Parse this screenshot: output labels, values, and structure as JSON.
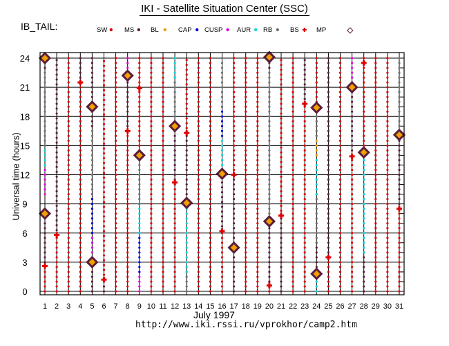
{
  "page_title": "IKI - Satellite Situation Center (SSC)",
  "region_label": "IB_TAIL:",
  "legend": [
    {
      "label": "SW",
      "color": "#e00000",
      "symbol": "dot"
    },
    {
      "label": "MS",
      "color": "#5a1e3c",
      "symbol": "dot"
    },
    {
      "label": "BL",
      "color": "#f0a000",
      "symbol": "dot"
    },
    {
      "label": "CAP",
      "color": "#0000e0",
      "symbol": "dot"
    },
    {
      "label": "CUSP",
      "color": "#e000e0",
      "symbol": "dot"
    },
    {
      "label": "AUR",
      "color": "#00d8d8",
      "symbol": "dot"
    },
    {
      "label": "RB",
      "color": "#707070",
      "symbol": "dot"
    },
    {
      "label": "BS",
      "color": "#e00000",
      "symbol": "plus"
    },
    {
      "label": "MP",
      "color": "#5a1e3c",
      "symbol": "diamond"
    }
  ],
  "footer": {
    "month": "July    1997",
    "url": "http://www.iki.rssi.ru/vprokhor/camp2.htm"
  },
  "chart_data": {
    "type": "scatter",
    "title": "IKI - Satellite Situation Center (SSC)",
    "xlabel": "July    1997",
    "ylabel": "Universal time (hours)",
    "x_ticks": [
      "1",
      "2",
      "3",
      "4",
      "5",
      "6",
      "7",
      "8",
      "9",
      "10",
      "11",
      "12",
      "13",
      "14",
      "15",
      "16",
      "17",
      "18",
      "19",
      "20",
      "21",
      "22",
      "23",
      "24",
      "25",
      "26",
      "27",
      "28",
      "29",
      "30",
      "31"
    ],
    "y_ticks": [
      "0",
      "3",
      "6",
      "9",
      "12",
      "15",
      "18",
      "21",
      "24"
    ],
    "ylim": [
      0,
      24
    ],
    "grid": true,
    "days": [
      {
        "day": 1,
        "segments": [
          [
            "SW",
            0,
            3
          ],
          [
            "MS",
            3,
            8
          ],
          [
            "BL",
            8,
            8.5
          ],
          [
            "CUSP",
            10,
            13
          ],
          [
            "AUR",
            13,
            15
          ],
          [
            "RB",
            15,
            23
          ],
          [
            "MS",
            23,
            24
          ]
        ],
        "bs": [
          2.6
        ],
        "mp": [
          8,
          24
        ]
      },
      {
        "day": 2,
        "segments": [
          [
            "SW",
            0,
            5.8
          ],
          [
            "MS",
            5.8,
            24
          ]
        ],
        "bs": [
          5.8
        ],
        "mp": []
      },
      {
        "day": 3,
        "segments": [
          [
            "SW",
            0,
            24
          ]
        ],
        "bs": [],
        "mp": []
      },
      {
        "day": 4,
        "segments": [
          [
            "SW",
            0,
            21.5
          ],
          [
            "MS",
            21.5,
            24
          ]
        ],
        "bs": [
          21.5
        ],
        "mp": []
      },
      {
        "day": 5,
        "segments": [
          [
            "MS",
            0,
            3
          ],
          [
            "CUSP",
            3,
            6
          ],
          [
            "CAP",
            6,
            10
          ],
          [
            "RB",
            10,
            17
          ],
          [
            "MS",
            17,
            24
          ]
        ],
        "bs": [],
        "mp": [
          3,
          19
        ]
      },
      {
        "day": 6,
        "segments": [
          [
            "MS",
            0,
            1.2
          ],
          [
            "SW",
            1.2,
            24
          ]
        ],
        "bs": [
          1.2
        ],
        "mp": []
      },
      {
        "day": 7,
        "segments": [
          [
            "SW",
            0,
            24
          ]
        ],
        "bs": [],
        "mp": []
      },
      {
        "day": 8,
        "segments": [
          [
            "SW",
            0,
            16.5
          ],
          [
            "MS",
            16.5,
            22
          ],
          [
            "CUSP",
            22,
            24
          ]
        ],
        "bs": [
          16.5
        ],
        "mp": [
          22.2
        ]
      },
      {
        "day": 9,
        "segments": [
          [
            "CUSP",
            0,
            2
          ],
          [
            "CAP",
            2,
            6
          ],
          [
            "AUR",
            6,
            9
          ],
          [
            "RB",
            9,
            14
          ],
          [
            "SW",
            14,
            24
          ]
        ],
        "bs": [
          20.9
        ],
        "mp": [
          14
        ]
      },
      {
        "day": 10,
        "segments": [
          [
            "SW",
            0,
            24
          ]
        ],
        "bs": [],
        "mp": []
      },
      {
        "day": 11,
        "segments": [
          [
            "SW",
            0,
            24
          ]
        ],
        "bs": [],
        "mp": []
      },
      {
        "day": 12,
        "segments": [
          [
            "SW",
            0,
            11
          ],
          [
            "MS",
            11,
            17
          ],
          [
            "RB",
            17,
            22
          ],
          [
            "AUR",
            22,
            24
          ]
        ],
        "bs": [
          11.2
        ],
        "mp": [
          17
        ]
      },
      {
        "day": 13,
        "segments": [
          [
            "RB",
            0,
            2
          ],
          [
            "AUR",
            2,
            9
          ],
          [
            "MS",
            9,
            16.3
          ],
          [
            "SW",
            16.3,
            24
          ]
        ],
        "bs": [
          16.3
        ],
        "mp": [
          9.1
        ]
      },
      {
        "day": 14,
        "segments": [
          [
            "SW",
            0,
            24
          ]
        ],
        "bs": [],
        "mp": []
      },
      {
        "day": 15,
        "segments": [
          [
            "SW",
            0,
            24
          ]
        ],
        "bs": [],
        "mp": []
      },
      {
        "day": 16,
        "segments": [
          [
            "SW",
            0,
            6.2
          ],
          [
            "MS",
            6.2,
            12
          ],
          [
            "AUR",
            12,
            16
          ],
          [
            "CAP",
            16,
            19
          ],
          [
            "RB",
            19,
            24
          ]
        ],
        "bs": [
          6.2
        ],
        "mp": [
          12.1
        ]
      },
      {
        "day": 17,
        "segments": [
          [
            "MS",
            0,
            4
          ],
          [
            "BL",
            4,
            5
          ],
          [
            "MS",
            5,
            12
          ],
          [
            "SW",
            12,
            24
          ]
        ],
        "bs": [
          12
        ],
        "mp": [
          4.5
        ]
      },
      {
        "day": 18,
        "segments": [
          [
            "SW",
            0,
            24
          ]
        ],
        "bs": [],
        "mp": []
      },
      {
        "day": 19,
        "segments": [
          [
            "SW",
            0,
            24
          ]
        ],
        "bs": [],
        "mp": []
      },
      {
        "day": 20,
        "segments": [
          [
            "SW",
            0,
            1
          ],
          [
            "MS",
            1,
            7
          ],
          [
            "BL",
            7,
            8
          ],
          [
            "RB",
            8,
            23
          ],
          [
            "MS",
            23,
            24
          ]
        ],
        "bs": [
          0.6
        ],
        "mp": [
          7.2,
          24.1
        ]
      },
      {
        "day": 21,
        "segments": [
          [
            "MS",
            0,
            7.8
          ],
          [
            "SW",
            7.8,
            24
          ]
        ],
        "bs": [
          7.8
        ],
        "mp": []
      },
      {
        "day": 22,
        "segments": [
          [
            "SW",
            0,
            24
          ]
        ],
        "bs": [],
        "mp": []
      },
      {
        "day": 23,
        "segments": [
          [
            "SW",
            0,
            19.3
          ],
          [
            "MS",
            19.3,
            24
          ]
        ],
        "bs": [
          19.3
        ],
        "mp": []
      },
      {
        "day": 24,
        "segments": [
          [
            "AUR",
            0,
            2
          ],
          [
            "MS",
            2,
            5
          ],
          [
            "RB",
            5,
            10
          ],
          [
            "AUR",
            10,
            14
          ],
          [
            "BL",
            14,
            16
          ],
          [
            "RB",
            16,
            19
          ],
          [
            "SW",
            19,
            24
          ]
        ],
        "bs": [],
        "mp": [
          1.8,
          18.9
        ]
      },
      {
        "day": 25,
        "segments": [
          [
            "SW",
            0,
            3.5
          ],
          [
            "MS",
            3.5,
            24
          ]
        ],
        "bs": [
          3.5
        ],
        "mp": []
      },
      {
        "day": 26,
        "segments": [
          [
            "SW",
            0,
            24
          ]
        ],
        "bs": [],
        "mp": []
      },
      {
        "day": 27,
        "segments": [
          [
            "SW",
            0,
            14
          ],
          [
            "MS",
            14,
            21
          ],
          [
            "CAP",
            21,
            22
          ],
          [
            "CUSP",
            22,
            24
          ]
        ],
        "bs": [
          13.9
        ],
        "mp": [
          21
        ]
      },
      {
        "day": 28,
        "segments": [
          [
            "MS",
            0,
            4
          ],
          [
            "AUR",
            4,
            14
          ],
          [
            "SW",
            14,
            24
          ]
        ],
        "bs": [
          23.5
        ],
        "mp": [
          14.3
        ]
      },
      {
        "day": 29,
        "segments": [
          [
            "SW",
            0,
            24
          ]
        ],
        "bs": [],
        "mp": []
      },
      {
        "day": 30,
        "segments": [
          [
            "SW",
            0,
            24
          ]
        ],
        "bs": [],
        "mp": []
      },
      {
        "day": 31,
        "segments": [
          [
            "SW",
            0,
            8.5
          ],
          [
            "MS",
            8.5,
            16
          ],
          [
            "RB",
            16,
            24
          ]
        ],
        "bs": [
          8.5
        ],
        "mp": [
          16.1
        ]
      }
    ]
  }
}
